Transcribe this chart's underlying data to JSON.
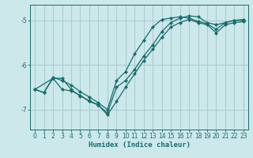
{
  "xlabel": "Humidex (Indice chaleur)",
  "bg_color": "#cce8eb",
  "grid_color": "#aacdd2",
  "line_color": "#1a6b6b",
  "xlim": [
    -0.5,
    23.5
  ],
  "ylim": [
    -7.45,
    -4.65
  ],
  "yticks": [
    -7,
    -6,
    -5
  ],
  "xticks": [
    0,
    1,
    2,
    3,
    4,
    5,
    6,
    7,
    8,
    9,
    10,
    11,
    12,
    13,
    14,
    15,
    16,
    17,
    18,
    19,
    20,
    21,
    22,
    23
  ],
  "series1_x": [
    0,
    2,
    3,
    4,
    5,
    6,
    7,
    8,
    9,
    10,
    11,
    12,
    13,
    14,
    15,
    16,
    17,
    18,
    19,
    20,
    21,
    22,
    23
  ],
  "series1_y": [
    -6.55,
    -6.3,
    -6.3,
    -6.55,
    -6.7,
    -6.8,
    -6.9,
    -7.08,
    -6.5,
    -6.35,
    -6.1,
    -5.8,
    -5.55,
    -5.25,
    -5.05,
    -4.95,
    -4.9,
    -4.92,
    -5.05,
    -5.1,
    -5.05,
    -5.0,
    -5.0
  ],
  "series2_x": [
    0,
    1,
    2,
    3,
    4,
    5,
    6,
    7,
    8,
    9,
    10,
    11,
    12,
    13,
    14,
    15,
    16,
    17,
    18,
    19,
    20,
    21,
    22,
    23
  ],
  "series2_y": [
    -6.55,
    -6.62,
    -6.3,
    -6.55,
    -6.58,
    -6.68,
    -6.82,
    -6.9,
    -7.12,
    -6.82,
    -6.5,
    -6.2,
    -5.9,
    -5.65,
    -5.38,
    -5.15,
    -5.05,
    -4.98,
    -5.05,
    -5.1,
    -5.28,
    -5.1,
    -5.05,
    -5.03
  ],
  "series3_x": [
    0,
    1,
    2,
    3,
    4,
    5,
    6,
    7,
    8,
    9,
    10,
    11,
    12,
    13,
    14,
    15,
    16,
    17,
    18,
    19,
    20,
    21,
    22,
    23
  ],
  "series3_y": [
    -6.55,
    -6.62,
    -6.28,
    -6.35,
    -6.45,
    -6.6,
    -6.72,
    -6.85,
    -7.0,
    -6.35,
    -6.15,
    -5.75,
    -5.45,
    -5.15,
    -4.98,
    -4.95,
    -4.92,
    -4.95,
    -5.02,
    -5.08,
    -5.2,
    -5.05,
    -5.0,
    -4.98
  ]
}
